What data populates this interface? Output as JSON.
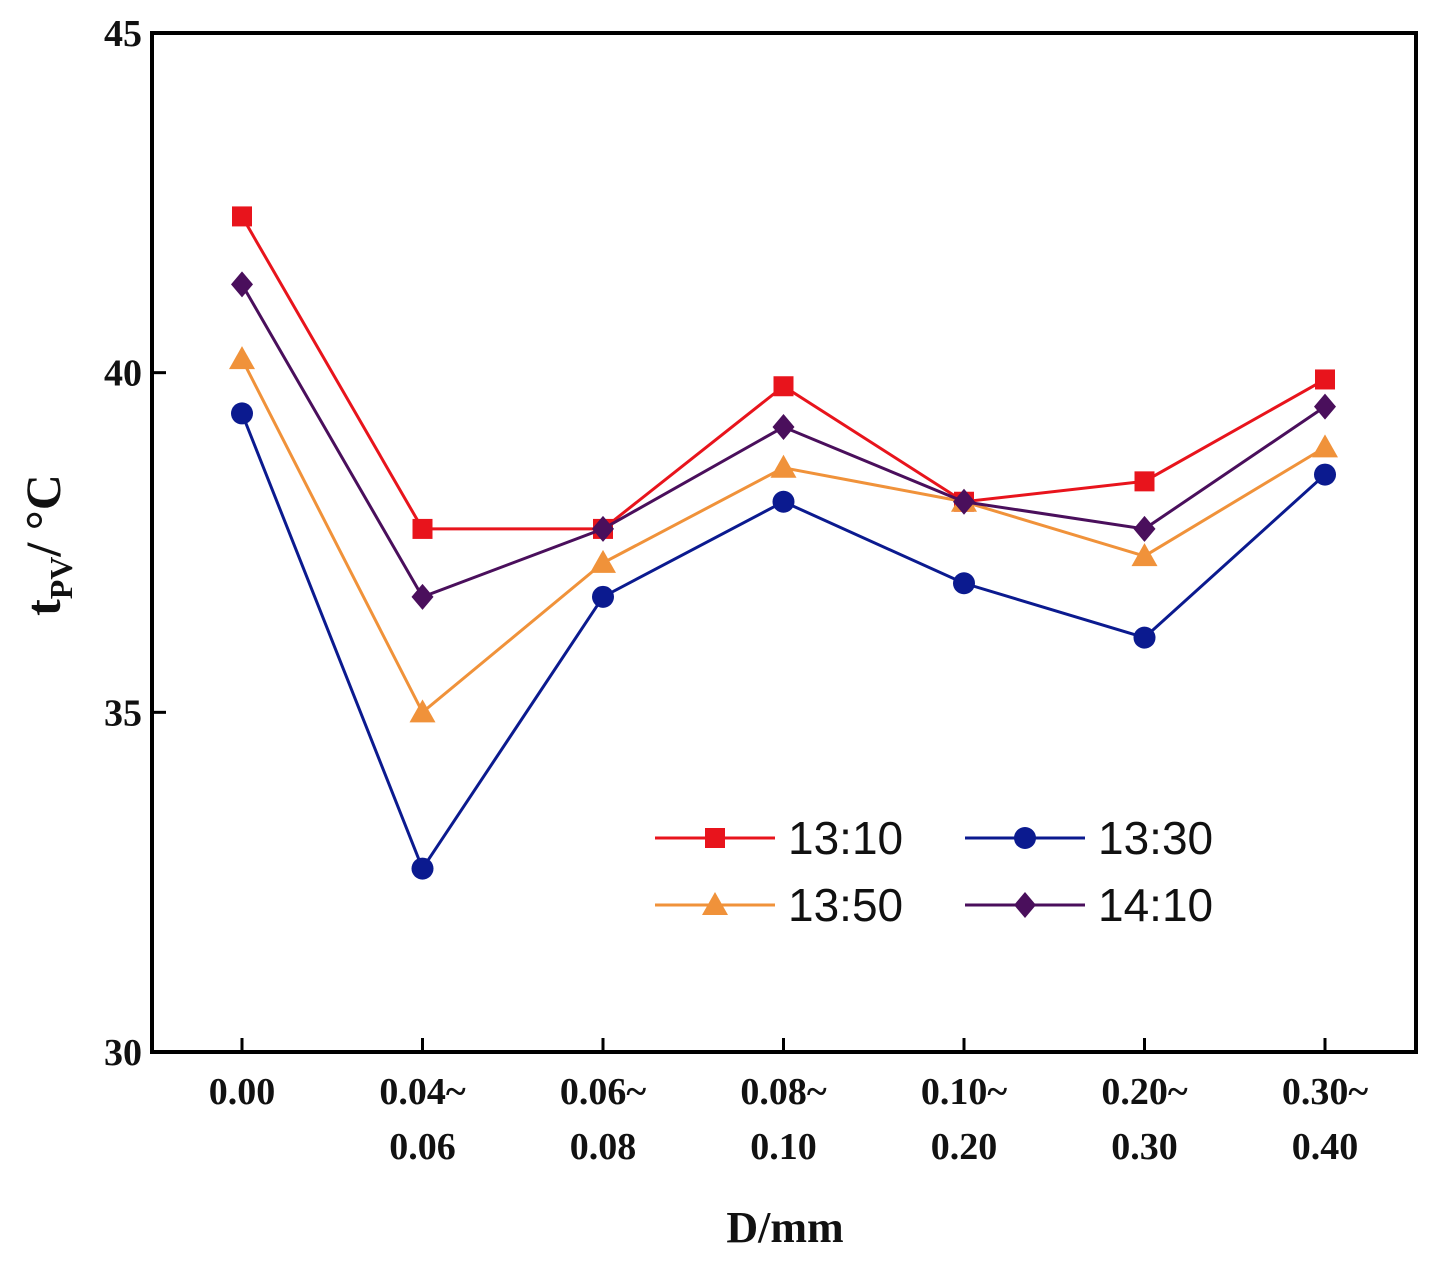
{
  "chart_data": {
    "type": "line",
    "title": "",
    "xlabel": "D/mm",
    "ylabel": {
      "main": "t",
      "sub": "PV",
      "rest": "/ °C"
    },
    "categories": [
      [
        "0.00"
      ],
      [
        "0.04~",
        "0.06"
      ],
      [
        "0.06~",
        "0.08"
      ],
      [
        "0.08~",
        "0.10"
      ],
      [
        "0.10~",
        "0.20"
      ],
      [
        "0.20~",
        "0.30"
      ],
      [
        "0.30~",
        "0.40"
      ]
    ],
    "ylim": [
      30,
      45
    ],
    "yticks": [
      30,
      35,
      40,
      45
    ],
    "grid": false,
    "legend_position": "lower-right",
    "series": [
      {
        "name": "13:10",
        "color": "#e8141c",
        "marker": "square",
        "values": [
          42.3,
          37.7,
          37.7,
          39.8,
          38.1,
          38.4,
          39.9
        ]
      },
      {
        "name": "13:30",
        "color": "#0b1a8f",
        "marker": "circle",
        "values": [
          39.4,
          32.7,
          36.7,
          38.1,
          36.9,
          36.1,
          38.5
        ]
      },
      {
        "name": "13:50",
        "color": "#f0923a",
        "marker": "triangle",
        "values": [
          40.2,
          35.0,
          37.2,
          38.6,
          38.1,
          37.3,
          38.9
        ]
      },
      {
        "name": "14:10",
        "color": "#4a0f5c",
        "marker": "diamond",
        "values": [
          41.3,
          36.7,
          37.7,
          39.2,
          38.1,
          37.7,
          39.5
        ]
      }
    ]
  }
}
